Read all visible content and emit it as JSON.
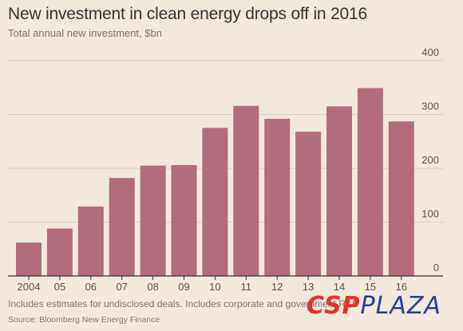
{
  "colors": {
    "background": "#f3e8de",
    "bar": "#b36b7e",
    "grid": "#d6cdc4",
    "axis": "#333333",
    "tick_text": "#55524d"
  },
  "chart_data": {
    "type": "bar",
    "title": "New investment in clean energy drops off in 2016",
    "subtitle": "Total annual new investment, $bn",
    "categories": [
      "2004",
      "05",
      "06",
      "07",
      "08",
      "09",
      "10",
      "11",
      "12",
      "13",
      "14",
      "15",
      "16"
    ],
    "values": [
      62,
      88,
      129,
      182,
      205,
      206,
      275,
      316,
      292,
      268,
      315,
      349,
      287
    ],
    "xlabel": "",
    "ylabel": "",
    "ylim": [
      0,
      400
    ],
    "yticks": [
      0,
      100,
      200,
      300,
      400
    ],
    "grid": true,
    "y_axis_side": "right",
    "note": "Includes estimates for undisclosed deals. Includes corporate and government R&D",
    "source": "Source: Bloomberg New Energy Finance"
  },
  "watermark": {
    "part1": "CSP",
    "part2": "PLAZA"
  }
}
